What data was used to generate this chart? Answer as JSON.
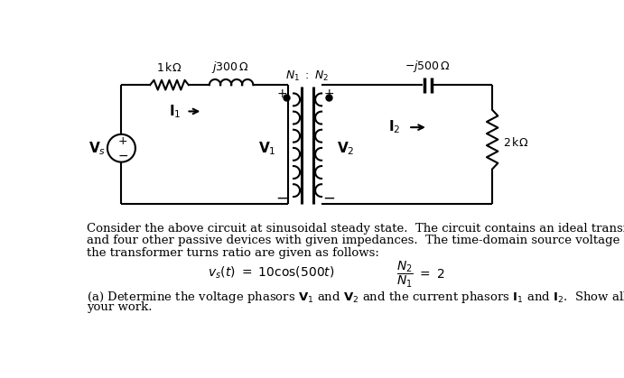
{
  "bg_color": "#ffffff",
  "text_color": "#000000",
  "circuit_color": "#000000",
  "fig_width": 6.91,
  "fig_height": 4.19,
  "dpi": 100,
  "paragraph1": "Consider the above circuit at sinusoidal steady state.  The circuit contains an ideal transformer",
  "paragraph2": "and four other passive devices with given impedances.  The time-domain source voltage and",
  "paragraph3": "the transformer turns ratio are given as follows:"
}
